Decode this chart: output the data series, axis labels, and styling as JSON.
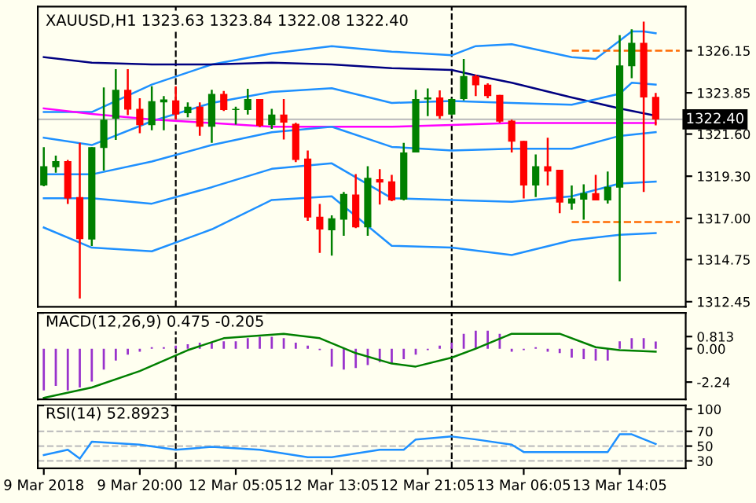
{
  "chart_data": [
    {
      "type": "candlestick",
      "title": "XAUUSD,H1 1323.63 1323.84 1322.08 1322.40",
      "ohlc": [
        [
          1318.79,
          1320.88,
          1318.75,
          1319.84
        ],
        [
          1319.79,
          1320.42,
          1319.49,
          1320.12
        ],
        [
          1320.12,
          1320.19,
          1317.79,
          1318.09
        ],
        [
          1318.16,
          1321.12,
          1312.63,
          1315.87
        ],
        [
          1315.84,
          1320.88,
          1315.49,
          1320.88
        ],
        [
          1320.84,
          1324.14,
          1319.61,
          1322.39
        ],
        [
          1322.44,
          1325.14,
          1321.28,
          1324.02
        ],
        [
          1324.02,
          1325.14,
          1322.63,
          1322.93
        ],
        [
          1322.98,
          1323.56,
          1321.65,
          1322.09
        ],
        [
          1322.09,
          1324.21,
          1321.81,
          1323.39
        ],
        [
          1323.33,
          1323.67,
          1321.81,
          1323.49
        ],
        [
          1323.44,
          1324.21,
          1322.39,
          1322.67
        ],
        [
          1322.74,
          1323.33,
          1322.51,
          1323.09
        ],
        [
          1323.09,
          1323.33,
          1321.51,
          1322.0
        ],
        [
          1322.0,
          1324.02,
          1321.12,
          1323.79
        ],
        [
          1323.79,
          1323.95,
          1322.86,
          1322.91
        ],
        [
          1322.91,
          1323.09,
          1322.12,
          1322.98
        ],
        [
          1322.91,
          1324.07,
          1322.67,
          1323.51
        ],
        [
          1323.51,
          1323.51,
          1321.98,
          1322.05
        ],
        [
          1322.09,
          1322.98,
          1321.88,
          1322.67
        ],
        [
          1322.67,
          1323.51,
          1321.3,
          1322.23
        ],
        [
          1322.16,
          1322.21,
          1320.07,
          1320.19
        ],
        [
          1320.26,
          1320.7,
          1316.86,
          1317.05
        ],
        [
          1317.09,
          1317.79,
          1315.12,
          1316.39
        ],
        [
          1316.35,
          1317.16,
          1314.96,
          1317.0
        ],
        [
          1316.93,
          1318.44,
          1316.05,
          1318.33
        ],
        [
          1318.3,
          1319.42,
          1316.47,
          1316.51
        ],
        [
          1316.51,
          1319.84,
          1316.05,
          1319.21
        ],
        [
          1319.14,
          1319.68,
          1317.75,
          1318.95
        ],
        [
          1319.02,
          1319.37,
          1317.93,
          1317.98
        ],
        [
          1318.02,
          1321.12,
          1317.98,
          1320.6
        ],
        [
          1320.6,
          1324.02,
          1320.6,
          1323.51
        ],
        [
          1323.49,
          1324.09,
          1322.58,
          1323.6
        ],
        [
          1323.6,
          1323.98,
          1322.44,
          1322.58
        ],
        [
          1322.67,
          1323.56,
          1322.63,
          1323.51
        ],
        [
          1323.51,
          1325.7,
          1323.44,
          1324.77
        ],
        [
          1324.77,
          1324.84,
          1323.67,
          1324.26
        ],
        [
          1324.3,
          1324.37,
          1323.56,
          1323.67
        ],
        [
          1323.74,
          1323.74,
          1322.21,
          1322.28
        ],
        [
          1322.33,
          1322.39,
          1320.6,
          1321.19
        ],
        [
          1321.23,
          1321.23,
          1318.09,
          1318.79
        ],
        [
          1318.79,
          1320.49,
          1318.16,
          1319.84
        ],
        [
          1319.84,
          1321.4,
          1318.79,
          1319.56
        ],
        [
          1319.65,
          1319.65,
          1317.28,
          1317.86
        ],
        [
          1317.81,
          1318.79,
          1317.47,
          1318.09
        ],
        [
          1318.02,
          1318.86,
          1316.93,
          1318.37
        ],
        [
          1318.37,
          1319.37,
          1317.98,
          1317.98
        ],
        [
          1317.98,
          1319.56,
          1317.81,
          1318.72
        ],
        [
          1318.67,
          1327.0,
          1313.56,
          1325.35
        ],
        [
          1325.3,
          1327.32,
          1324.65,
          1326.58
        ],
        [
          1326.58,
          1327.74,
          1318.44,
          1323.6
        ],
        [
          1323.63,
          1323.84,
          1322.08,
          1322.4
        ],
        null,
        null
      ],
      "colors": [
        "#008000",
        "#008000",
        "#ff0000",
        "#ff0000",
        "#008000",
        "#008000",
        "#008000",
        "#ff0000",
        "#ff0000",
        "#008000",
        "#008000",
        "#ff0000",
        "#008000",
        "#ff0000",
        "#008000",
        "#ff0000",
        "#008000",
        "#008000",
        "#ff0000",
        "#008000",
        "#ff0000",
        "#ff0000",
        "#ff0000",
        "#ff0000",
        "#008000",
        "#008000",
        "#ff0000",
        "#008000",
        "#ff0000",
        "#ff0000",
        "#008000",
        "#008000",
        "#008000",
        "#ff0000",
        "#008000",
        "#008000",
        "#ff0000",
        "#ff0000",
        "#ff0000",
        "#ff0000",
        "#ff0000",
        "#008000",
        "#ff0000",
        "#ff0000",
        "#008000",
        "#008000",
        "#ff0000",
        "#008000",
        "#008000",
        "#008000",
        "#ff0000",
        "#ff0000",
        null,
        null
      ],
      "series": [
        {
          "type": "line",
          "color": "#1e90ff",
          "values": [
            1322.8,
            null,
            null,
            null,
            1322.8,
            null,
            null,
            null,
            null,
            1324.3,
            null,
            null,
            null,
            null,
            1325.4,
            null,
            null,
            null,
            null,
            1326.0,
            null,
            null,
            null,
            null,
            1326.4,
            null,
            null,
            null,
            null,
            1326.1,
            null,
            null,
            null,
            null,
            1325.9,
            null,
            1326.4,
            null,
            null,
            1326.5,
            null,
            null,
            null,
            null,
            1325.8,
            null,
            1325.7,
            null,
            1326.7,
            1327.2,
            1327.2,
            1327.1,
            null,
            null
          ]
        },
        {
          "type": "line",
          "color": "#000080",
          "values": [
            1325.8,
            null,
            null,
            null,
            1325.5,
            null,
            null,
            null,
            null,
            1325.4,
            null,
            null,
            null,
            null,
            1325.4,
            null,
            null,
            null,
            null,
            1325.5,
            null,
            null,
            null,
            null,
            1325.4,
            null,
            null,
            null,
            null,
            1325.2,
            null,
            null,
            null,
            null,
            1325.1,
            null,
            1324.8,
            null,
            null,
            1324.4,
            null,
            null,
            null,
            null,
            1323.6,
            null,
            null,
            null,
            1323.0,
            null,
            null,
            1322.6,
            null,
            null
          ]
        },
        {
          "type": "line",
          "color": "#1e90ff",
          "values": [
            1321.4,
            null,
            null,
            null,
            1321.0,
            null,
            null,
            null,
            null,
            1322.3,
            null,
            null,
            null,
            null,
            1323.3,
            null,
            null,
            null,
            null,
            1323.9,
            null,
            null,
            null,
            null,
            1324.1,
            null,
            null,
            null,
            null,
            1323.3,
            null,
            null,
            null,
            null,
            1323.4,
            null,
            null,
            null,
            null,
            1323.3,
            null,
            null,
            null,
            null,
            1323.2,
            null,
            null,
            null,
            1323.8,
            1324.4,
            null,
            1324.3,
            null,
            null
          ]
        },
        {
          "type": "line",
          "color": "#ff00ff",
          "values": [
            1323.0,
            null,
            null,
            null,
            1322.7,
            null,
            null,
            null,
            null,
            1322.4,
            null,
            null,
            null,
            null,
            1322.2,
            null,
            null,
            null,
            null,
            1322.0,
            null,
            null,
            null,
            null,
            1322.0,
            null,
            null,
            null,
            null,
            1322.0,
            null,
            null,
            null,
            null,
            1322.1,
            null,
            null,
            null,
            null,
            1322.2,
            null,
            null,
            null,
            null,
            1322.2,
            null,
            null,
            null,
            null,
            null,
            null,
            1322.2,
            null,
            null
          ]
        },
        {
          "type": "line",
          "color": "#1e90ff",
          "values": [
            1319.4,
            null,
            null,
            null,
            1319.4,
            null,
            null,
            null,
            null,
            1320.1,
            null,
            null,
            null,
            null,
            1321.0,
            null,
            null,
            null,
            null,
            1321.7,
            null,
            null,
            null,
            null,
            1322.0,
            null,
            null,
            null,
            null,
            1320.9,
            null,
            null,
            null,
            null,
            1320.7,
            null,
            null,
            null,
            null,
            1320.8,
            null,
            null,
            null,
            null,
            1320.8,
            null,
            null,
            null,
            1321.5,
            null,
            null,
            1321.7,
            null,
            null
          ]
        },
        {
          "type": "line",
          "color": "#1e90ff",
          "values": [
            1318.1,
            null,
            null,
            null,
            1318.1,
            null,
            null,
            null,
            null,
            1317.8,
            null,
            null,
            null,
            null,
            1318.7,
            null,
            null,
            null,
            null,
            1319.7,
            null,
            null,
            null,
            null,
            1320.0,
            null,
            null,
            null,
            null,
            1318.1,
            null,
            null,
            null,
            null,
            1318.0,
            null,
            null,
            null,
            null,
            1317.9,
            null,
            null,
            null,
            null,
            1318.2,
            null,
            null,
            null,
            1318.9,
            null,
            null,
            1319.0,
            null,
            null
          ]
        },
        {
          "type": "line",
          "color": "#1e90ff",
          "values": [
            1316.5,
            null,
            null,
            null,
            1315.4,
            null,
            null,
            null,
            null,
            1315.2,
            null,
            null,
            null,
            null,
            1316.4,
            null,
            null,
            null,
            null,
            1318.0,
            null,
            null,
            null,
            null,
            1318.2,
            null,
            null,
            null,
            null,
            1315.5,
            null,
            null,
            null,
            null,
            1315.4,
            null,
            null,
            null,
            null,
            1315.0,
            null,
            null,
            null,
            null,
            1315.8,
            null,
            null,
            null,
            1316.1,
            null,
            null,
            1316.2,
            null,
            null
          ]
        },
        {
          "type": "line",
          "color": "#ff6a00",
          "line_style": "dashed",
          "values": [
            null,
            null,
            null,
            null,
            null,
            null,
            null,
            null,
            null,
            null,
            null,
            null,
            null,
            null,
            null,
            null,
            null,
            null,
            null,
            null,
            null,
            null,
            null,
            null,
            null,
            null,
            null,
            null,
            null,
            null,
            null,
            null,
            null,
            null,
            null,
            null,
            null,
            null,
            null,
            null,
            null,
            null,
            null,
            null,
            1326.15,
            null,
            null,
            null,
            null,
            null,
            null,
            null,
            null,
            1326.15
          ]
        },
        {
          "type": "line",
          "color": "#ff6a00",
          "line_style": "dashed",
          "values": [
            null,
            null,
            null,
            null,
            null,
            null,
            null,
            null,
            null,
            null,
            null,
            null,
            null,
            null,
            null,
            null,
            null,
            null,
            null,
            null,
            null,
            null,
            null,
            null,
            null,
            null,
            null,
            null,
            null,
            null,
            null,
            null,
            null,
            null,
            null,
            null,
            null,
            null,
            null,
            null,
            null,
            null,
            null,
            null,
            1316.8,
            null,
            null,
            null,
            null,
            null,
            null,
            null,
            null,
            1316.8
          ]
        }
      ],
      "ylim": [
        1312.17,
        1328.56
      ],
      "yticks": [
        1312.45,
        1314.75,
        {
          "value": 1317,
          "label": "1317.00"
        },
        {
          "value": 1319.3,
          "label": "1319.30"
        },
        {
          "value": 1321.6,
          "label": "1321.60"
        },
        1323.85,
        1326.15
      ],
      "ref_lines": [
        {
          "axis": "y",
          "value": 1322.4,
          "label": "1322.40",
          "color": "#c0c0c0"
        }
      ],
      "tick_labels": "y"
    },
    {
      "type": "bar",
      "title": "MACD(12,26,9) 0.475 -0.205",
      "color": "#9932cc",
      "values": [
        -2.8,
        -2.5,
        -2.8,
        -2.6,
        -2.2,
        -1.4,
        -0.8,
        -0.4,
        -0.2,
        0.1,
        0.1,
        0.2,
        0.3,
        0.4,
        0.4,
        0.5,
        0.5,
        0.7,
        0.8,
        0.8,
        0.7,
        0.4,
        0.2,
        -0.1,
        -1.2,
        -1.4,
        -1.3,
        -1.1,
        -0.9,
        -1.0,
        -0.7,
        -0.4,
        -0.1,
        0.2,
        0.4,
        1.0,
        1.2,
        1.2,
        1.0,
        -0.2,
        -0.1,
        0.1,
        -0.2,
        -0.3,
        -0.6,
        -0.7,
        -0.8,
        -0.8,
        0.5,
        0.7,
        0.7,
        0.475,
        null,
        null
      ],
      "series": [
        {
          "type": "line",
          "color": "#008000",
          "values": [
            -3.3,
            null,
            null,
            null,
            -2.6,
            null,
            null,
            null,
            -1.5,
            null,
            null,
            null,
            -0.1,
            null,
            null,
            0.7,
            null,
            null,
            null,
            null,
            1.0,
            null,
            null,
            0.7,
            null,
            null,
            -0.3,
            null,
            null,
            -1.0,
            null,
            -1.2,
            null,
            null,
            -0.6,
            null,
            0.0,
            null,
            null,
            1.0,
            null,
            null,
            null,
            1.0,
            null,
            null,
            0.1,
            null,
            -0.1,
            null,
            null,
            -0.2,
            null,
            null
          ]
        }
      ],
      "ylim": [
        -3.4,
        2.4
      ],
      "yticks": [
        0.813,
        {
          "value": 0,
          "label": "0.00"
        },
        -2.24
      ],
      "tick_labels": "y"
    },
    {
      "type": "line",
      "title": "RSI(14) 52.8923",
      "color": "#1e90ff",
      "categories": [
        "9 Mar 2018",
        null,
        null,
        null,
        null,
        null,
        null,
        null,
        "9 Mar 20:00",
        null,
        null,
        null,
        null,
        null,
        null,
        null,
        "12 Mar 05:05",
        null,
        null,
        null,
        null,
        null,
        null,
        null,
        "12 Mar 13:05",
        null,
        null,
        null,
        null,
        null,
        null,
        null,
        "12 Mar 21:05",
        null,
        null,
        null,
        null,
        null,
        null,
        null,
        "13 Mar 06:05",
        null,
        null,
        null,
        null,
        null,
        null,
        null,
        "13 Mar 14:05",
        null,
        null,
        null,
        null,
        null
      ],
      "values": [
        38,
        null,
        45,
        33,
        56,
        null,
        null,
        null,
        52,
        null,
        null,
        45,
        null,
        null,
        49,
        null,
        null,
        null,
        45,
        null,
        null,
        null,
        35,
        null,
        35,
        null,
        null,
        null,
        45,
        null,
        45,
        59,
        null,
        null,
        63,
        null,
        59,
        null,
        null,
        52,
        42,
        null,
        null,
        42,
        null,
        null,
        null,
        42,
        66,
        66,
        null,
        52.8923,
        null,
        null
      ],
      "ylim": [
        20,
        105
      ],
      "yticks": [
        100,
        70,
        50,
        30
      ],
      "ref_lines": [
        {
          "axis": "y",
          "value": 70,
          "color": "#c0c0c0",
          "line_style": "dashed"
        },
        {
          "axis": "y",
          "value": 50,
          "color": "#c0c0c0",
          "line_style": "dashed"
        },
        {
          "axis": "y",
          "value": 30,
          "color": "#c0c0c0",
          "line_style": "dashed"
        }
      ]
    }
  ]
}
